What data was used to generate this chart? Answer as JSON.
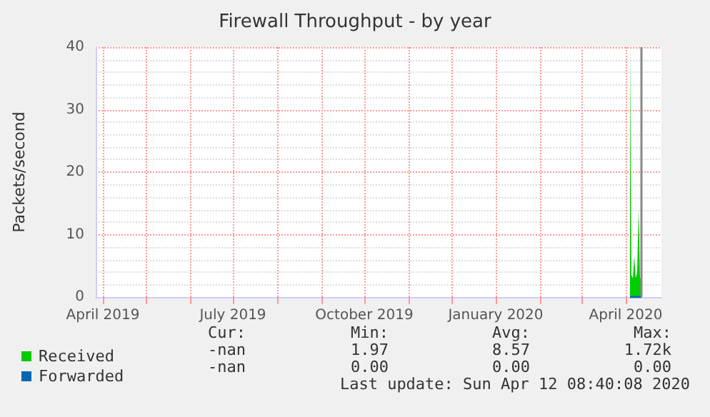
{
  "chart_data": {
    "type": "area",
    "title": "Firewall Throughput - by year",
    "ylabel": "Packets/second",
    "x": [
      "2020-04-04",
      "2020-04-05",
      "2020-04-06",
      "2020-04-07",
      "2020-04-08",
      "2020-04-09",
      "2020-04-10",
      "2020-04-11",
      "2020-04-12"
    ],
    "series": [
      {
        "name": "Received",
        "color": "#00cc00",
        "values": [
          40,
          3.5,
          3,
          6.5,
          3,
          4,
          14,
          3,
          3
        ]
      },
      {
        "name": "Forwarded",
        "color": "#0066b3",
        "type": "line",
        "values": [
          0,
          0,
          0,
          0,
          0,
          0,
          0,
          0,
          0
        ]
      }
    ],
    "xlim": [
      "2019-03-27",
      "2020-04-26"
    ],
    "xticks": [
      {
        "value": "2019-04-01",
        "label": "April 2019"
      },
      {
        "value": "2019-05-01",
        "label": null
      },
      {
        "value": "2019-06-01",
        "label": null
      },
      {
        "value": "2019-07-01",
        "label": "July 2019"
      },
      {
        "value": "2019-08-01",
        "label": null
      },
      {
        "value": "2019-09-01",
        "label": null
      },
      {
        "value": "2019-10-01",
        "label": "October 2019"
      },
      {
        "value": "2019-11-01",
        "label": null
      },
      {
        "value": "2019-12-01",
        "label": null
      },
      {
        "value": "2020-01-01",
        "label": "January 2020"
      },
      {
        "value": "2020-02-01",
        "label": null
      },
      {
        "value": "2020-03-01",
        "label": null
      },
      {
        "value": "2020-04-01",
        "label": "April 2020"
      }
    ],
    "ylim": [
      0,
      40
    ],
    "yticks": [
      0,
      10,
      20,
      30,
      40
    ],
    "ref_lines": [
      {
        "axis": "x",
        "value": "2020-04-12",
        "label": null,
        "color": "#888888"
      }
    ],
    "grid": true,
    "legend": "bottom left",
    "marker": "none",
    "annotations": [
      "Cur:",
      "Min:",
      "Avg:",
      "Max:",
      "-nan",
      "1.97",
      "8.57",
      "1.72k",
      "-nan",
      "0.00",
      "0.00",
      "0.00",
      "Last update: Sun Apr 12 08:40:08 2020"
    ]
  }
}
